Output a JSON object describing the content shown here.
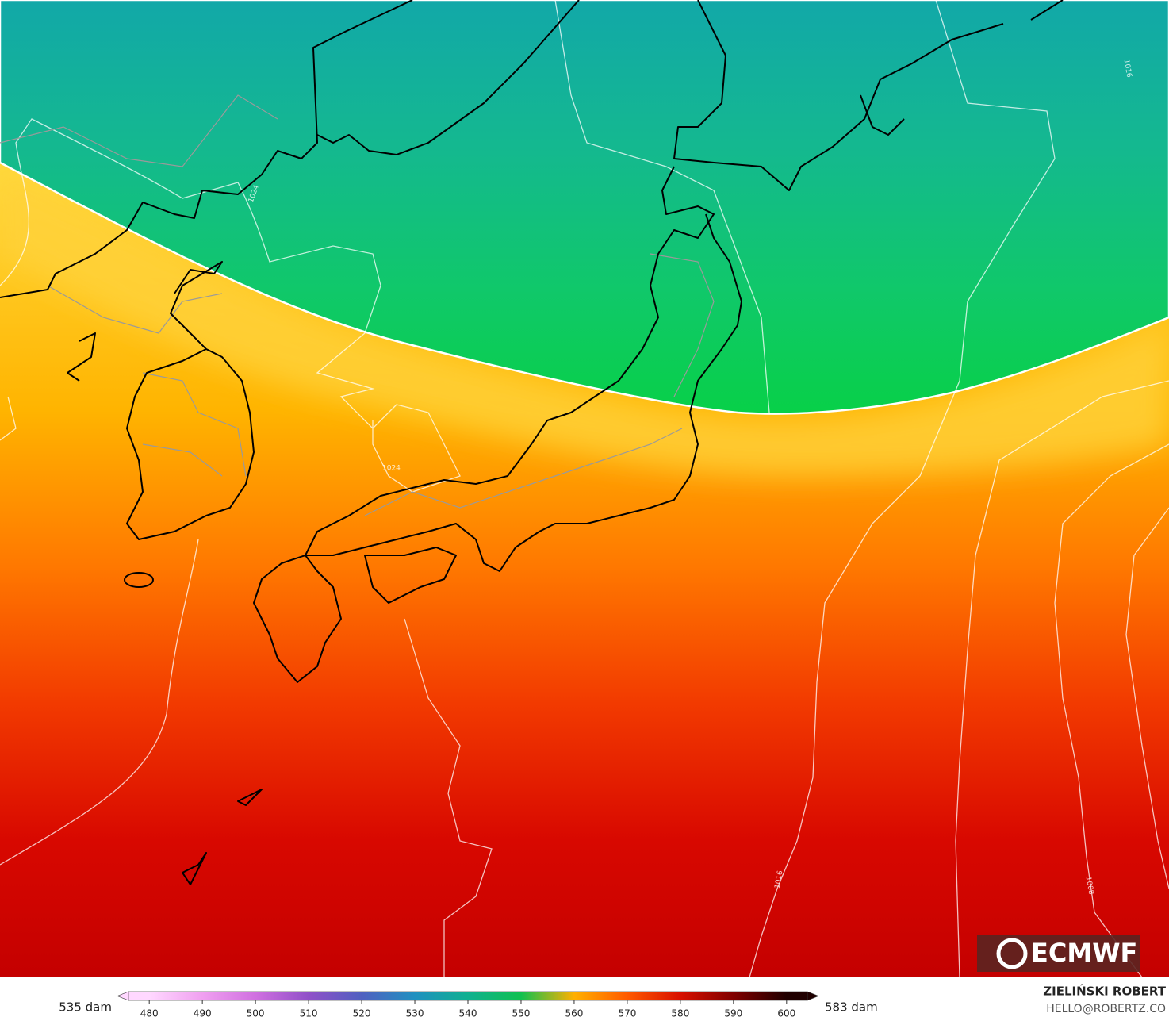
{
  "map": {
    "isobar_labels": [
      "1024",
      "1024",
      "1016",
      "1016",
      "1008"
    ],
    "logo": "ECMWF",
    "legend": {
      "min_label": "535 dam",
      "max_label": "583 dam"
    },
    "colorbar": {
      "range": [
        474,
        606
      ],
      "ticks": [
        480,
        490,
        500,
        510,
        520,
        530,
        540,
        550,
        560,
        570,
        580,
        590,
        600
      ],
      "colors": [
        "#ffd8ff",
        "#f0a0f0",
        "#d070e0",
        "#9050c8",
        "#5060c0",
        "#2090c0",
        "#10b090",
        "#10c050",
        "#ffb000",
        "#ff5a00",
        "#d81000",
        "#800000",
        "#200000"
      ]
    },
    "credits": {
      "author": "ZIELIŃSKI ROBERT",
      "contact": "HELLO@ROBERTZ.CO"
    }
  }
}
